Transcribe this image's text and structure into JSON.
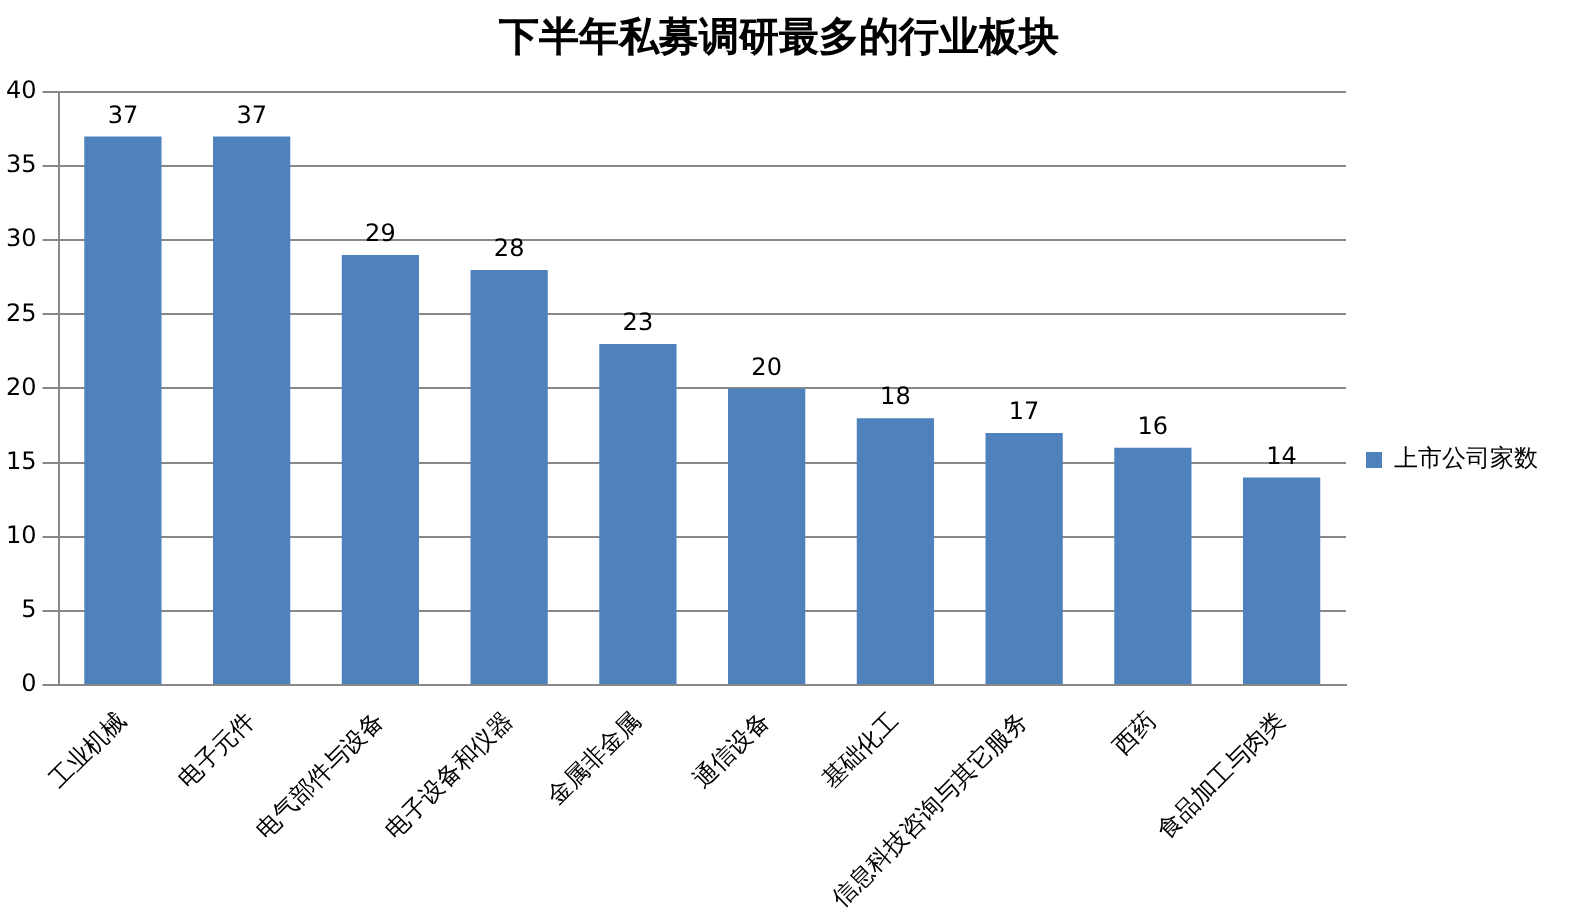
{
  "chart_data": {
    "type": "bar",
    "title": "下半年私募调研最多的行业板块",
    "categories": [
      "工业机械",
      "电子元件",
      "电气部件与设备",
      "电子设备和仪器",
      "金属非金属",
      "通信设备",
      "基础化工",
      "信息科技咨询与其它服务",
      "西药",
      "食品加工与肉类"
    ],
    "series": [
      {
        "name": "上市公司家数",
        "color": "#4f81bd",
        "values": [
          37,
          37,
          29,
          28,
          23,
          20,
          18,
          17,
          16,
          14
        ]
      }
    ],
    "ylim": [
      0,
      40
    ],
    "yticks": [
      0,
      5,
      10,
      15,
      20,
      25,
      30,
      35,
      40
    ],
    "grid": "y",
    "legend": "right",
    "data_labels": true
  }
}
